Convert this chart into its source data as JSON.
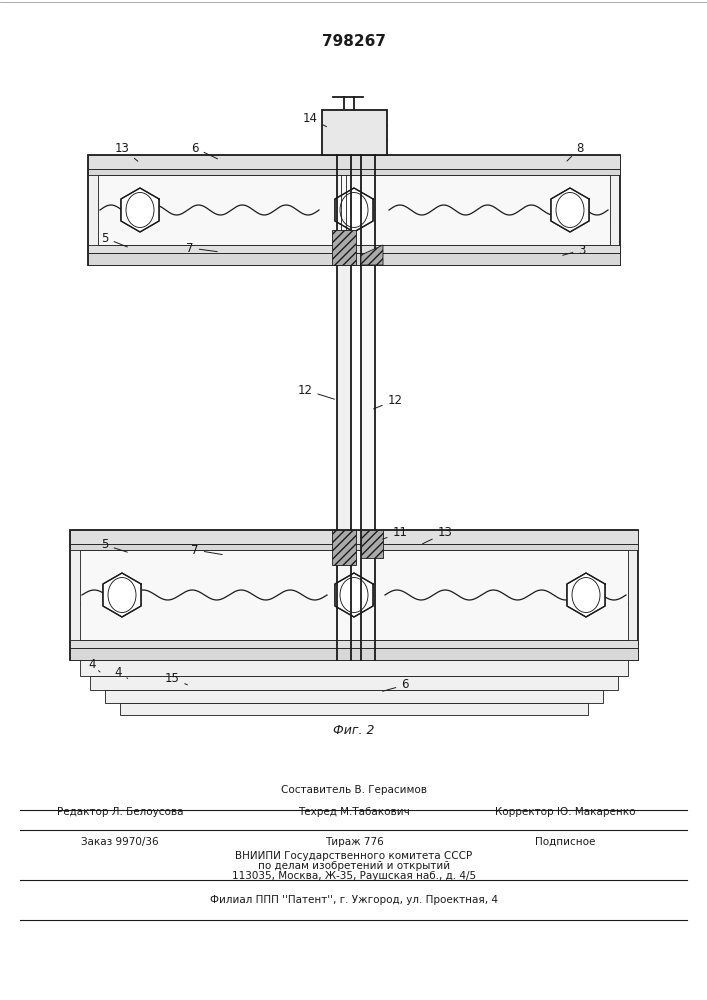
{
  "patent_number": "798267",
  "fig_label": "Фиг. 2",
  "bg_color": "#ffffff",
  "line_color": "#1a1a1a",
  "footer": {
    "line1": "Составитель В. Герасимов",
    "line2_left": "Редактор Л. Белоусова",
    "line2_mid": "Техред М.Табакович",
    "line2_right": "Корректор Ю. Макаренко",
    "line3_left": "Заказ 9970/36",
    "line3_mid": "Тираж 776",
    "line3_right": "Подписное",
    "line4": "ВНИИПИ Государственного комитета СССР",
    "line5": "по делам изобретений и открытий",
    "line6": "113035, Москва, Ж-35, Раушская наб., д. 4/5",
    "line7": "Филиал ППП ''Патент'', г. Ужгород, ул. Проектная, 4"
  }
}
